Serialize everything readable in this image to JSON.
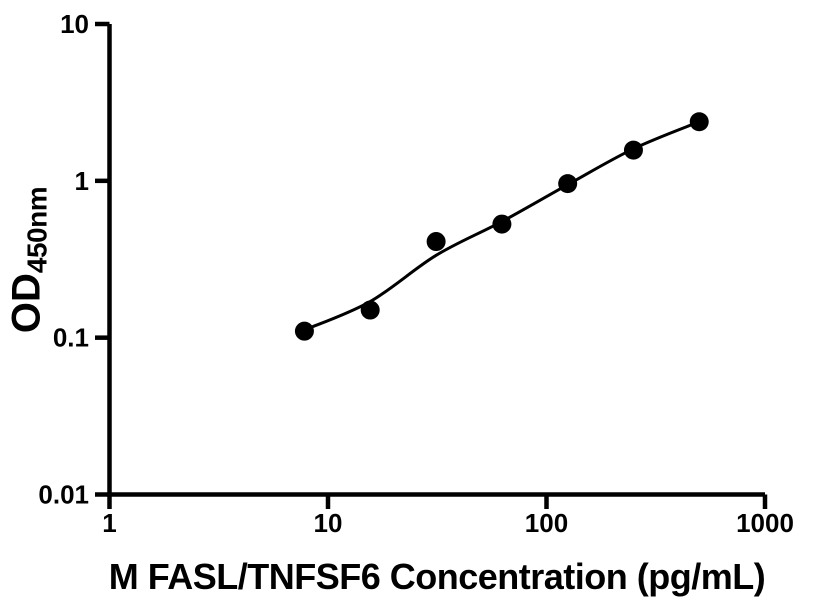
{
  "chart_data": {
    "type": "scatter",
    "title": "",
    "xlabel": "M FASL/TNFSF6 Concentration (pg/mL)",
    "ylabel": "OD450nm",
    "ylabel_main": "OD",
    "ylabel_sub": "450nm",
    "x_scale": "log10",
    "y_scale": "log10",
    "xlim": [
      1,
      1000
    ],
    "ylim": [
      0.01,
      10
    ],
    "grid": false,
    "legend": null,
    "marker_shape": "filled-circle",
    "x_ticks": [
      {
        "value": 1,
        "label": "1"
      },
      {
        "value": 10,
        "label": "10"
      },
      {
        "value": 100,
        "label": "100"
      },
      {
        "value": 1000,
        "label": "1000"
      }
    ],
    "y_ticks": [
      {
        "value": 0.01,
        "label": "0.01"
      },
      {
        "value": 0.1,
        "label": "0.1"
      },
      {
        "value": 1,
        "label": "1"
      },
      {
        "value": 10,
        "label": "10"
      }
    ],
    "points": [
      {
        "x": 7.8,
        "y": 0.11
      },
      {
        "x": 15.6,
        "y": 0.15
      },
      {
        "x": 31.25,
        "y": 0.41
      },
      {
        "x": 62.5,
        "y": 0.53
      },
      {
        "x": 125,
        "y": 0.96
      },
      {
        "x": 250,
        "y": 1.57
      },
      {
        "x": 500,
        "y": 2.38
      }
    ],
    "fit_curve": [
      {
        "x": 7.8,
        "y": 0.112
      },
      {
        "x": 15.6,
        "y": 0.17
      },
      {
        "x": 31.25,
        "y": 0.335
      },
      {
        "x": 62.5,
        "y": 0.55
      },
      {
        "x": 125,
        "y": 0.945
      },
      {
        "x": 250,
        "y": 1.6
      },
      {
        "x": 500,
        "y": 2.38
      }
    ],
    "colors": {
      "marker": "#000000",
      "line": "#000000",
      "axis": "#000000",
      "text": "#000000",
      "background": "#ffffff"
    }
  }
}
